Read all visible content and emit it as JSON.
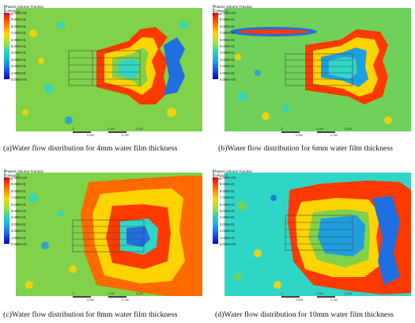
{
  "panels": [
    {
      "id": "a",
      "legend": {
        "title": "Phase2.Volume Fraction",
        "subtitle": "Contour 1"
      },
      "ticks": [
        "1.000e+00",
        "9.000e-01",
        "8.000e-01",
        "7.000e-01",
        "6.000e-01",
        "5.000e-01",
        "4.000e-01",
        "3.000e-01",
        "2.000e-01",
        "1.000e-01",
        "0.000e+00"
      ],
      "scale": {
        "t0": "0",
        "t1": "0.100",
        "t2": "0.200 (m)",
        "t3": "0.050",
        "t4": "0.150"
      },
      "caption": "(a)Water flow distribution for 4mm water film thickness"
    },
    {
      "id": "b",
      "legend": {
        "title": "Phase2.Volume Fraction",
        "subtitle": "Contour 1"
      },
      "ticks": [
        "1.000e+00",
        "9.000e-01",
        "8.000e-01",
        "7.000e-01",
        "6.000e-01",
        "5.000e-01",
        "4.000e-01",
        "3.000e-01",
        "2.000e-01",
        "1.000e-01",
        "0.000e+00"
      ],
      "scale": {
        "t0": "0",
        "t1": "0.100",
        "t2": "0.200 (m)",
        "t3": "0.050",
        "t4": "0.150"
      },
      "caption": "(b)Water flow distribution for 6mm water film thickness"
    },
    {
      "id": "c",
      "legend": {
        "title": "Phase2.Volume Fraction",
        "subtitle": "Contour 1"
      },
      "ticks": [
        "1.000e+00",
        "9.000e-01",
        "8.000e-01",
        "7.000e-01",
        "6.000e-01",
        "5.000e-01",
        "4.000e-01",
        "3.000e-01",
        "2.000e-01",
        "1.000e-01",
        "0.000e+00"
      ],
      "scale": {
        "t0": "0",
        "t1": "0.100",
        "t2": "0.200 (m)",
        "t3": "0.050",
        "t4": "0.150"
      },
      "caption": "(c)Water flow distribution for 8mm water film thickness"
    },
    {
      "id": "d",
      "legend": {
        "title": "Phase2.Volume Fraction",
        "subtitle": "Contour 1"
      },
      "ticks": [
        "1.000e+00",
        "9.000e-01",
        "8.000e-01",
        "7.000e-01",
        "6.000e-01",
        "5.000e-01",
        "4.000e-01",
        "3.000e-01",
        "2.000e-01",
        "1.000e-01",
        "0.000e+00"
      ],
      "scale": {
        "t0": "0",
        "t1": "0.100",
        "t2": "0.200 (m)",
        "t3": "0.050",
        "t4": "0.150"
      },
      "caption": "(d)Water flow distribution for 10mm water film thickness"
    }
  ],
  "colors": {
    "background_field": "#7fd24a",
    "water_high": "#ff3a00",
    "water_mid": "#ffd400",
    "air_low": "#1f6fe0",
    "cyan": "#2fd6c6"
  }
}
